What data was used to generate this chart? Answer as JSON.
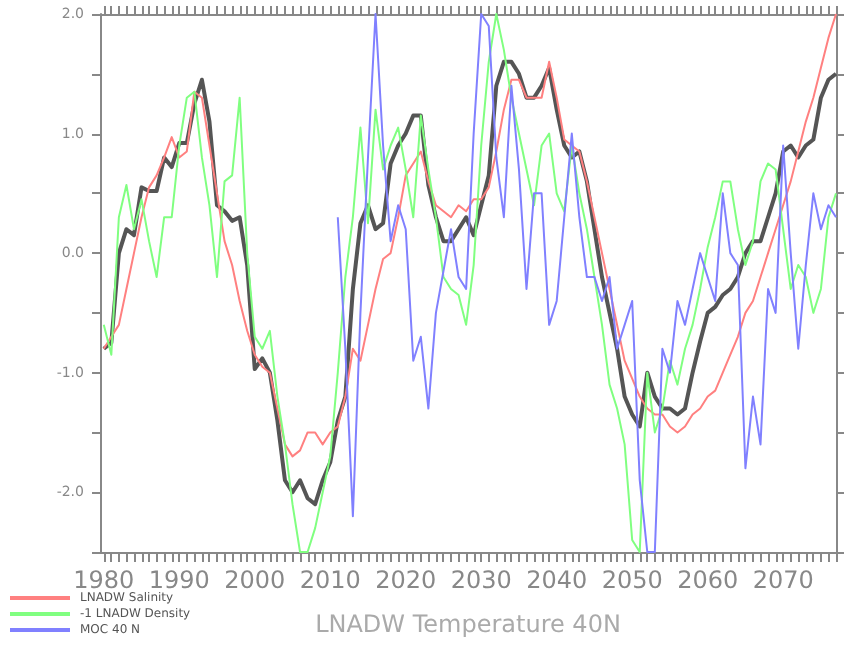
{
  "chart_data": {
    "type": "line",
    "xlabel": "LNADW Temperature 40N",
    "legend": "bottom left",
    "x": [
      1980,
      1981,
      1982,
      1983,
      1984,
      1985,
      1986,
      1987,
      1988,
      1989,
      1990,
      1991,
      1992,
      1993,
      1994,
      1995,
      1996,
      1997,
      1998,
      1999,
      2000,
      2001,
      2002,
      2003,
      2004,
      2005,
      2006,
      2007,
      2008,
      2009,
      2010,
      2011,
      2012,
      2013,
      2014,
      2015,
      2016,
      2017,
      2018,
      2019,
      2020,
      2021,
      2022,
      2023,
      2024,
      2025,
      2026,
      2027,
      2028,
      2029,
      2030,
      2031,
      2032,
      2033,
      2034,
      2035,
      2036,
      2037,
      2038,
      2039,
      2040,
      2041,
      2042,
      2043,
      2044,
      2045,
      2046,
      2047,
      2048,
      2049,
      2050,
      2051,
      2052,
      2053,
      2054,
      2055,
      2056,
      2057,
      2058,
      2059,
      2060,
      2061,
      2062,
      2063,
      2064,
      2065,
      2066,
      2067,
      2068,
      2069,
      2070,
      2071,
      2072,
      2073,
      2074,
      2075,
      2076,
      2077
    ],
    "xlim": [
      1979.5,
      2077
    ],
    "xticks": [
      1980,
      1990,
      2000,
      2010,
      2020,
      2030,
      2040,
      2050,
      2060,
      2070
    ],
    "ylim": [
      -2.5,
      2.0
    ],
    "yticks": [
      {
        "value": -2.5,
        "label": null
      },
      {
        "value": -2,
        "label": "-2.0"
      },
      {
        "value": -1.5,
        "label": null
      },
      {
        "value": -1,
        "label": "-1.0"
      },
      {
        "value": -0.5,
        "label": null
      },
      {
        "value": 0,
        "label": "0.0"
      },
      {
        "value": 0.5,
        "label": null
      },
      {
        "value": 1,
        "label": "1.0"
      },
      {
        "value": 1.5,
        "label": null
      },
      {
        "value": 2,
        "label": "2.0"
      }
    ],
    "series": [
      {
        "color": "#555555",
        "values": [
          -0.8,
          -0.75,
          0.0,
          0.2,
          0.15,
          0.55,
          0.52,
          0.52,
          0.8,
          0.72,
          0.92,
          0.92,
          1.25,
          1.45,
          1.1,
          0.4,
          0.35,
          0.27,
          0.3,
          -0.1,
          -0.97,
          -0.88,
          -1.0,
          -1.4,
          -1.9,
          -2.0,
          -1.9,
          -2.05,
          -2.1,
          -1.9,
          -1.75,
          -1.4,
          -1.2,
          -0.3,
          0.25,
          0.4,
          0.2,
          0.25,
          0.75,
          0.9,
          1.0,
          1.15,
          1.15,
          0.57,
          0.3,
          0.1,
          0.1,
          0.2,
          0.3,
          0.15,
          0.4,
          0.65,
          1.4,
          1.6,
          1.6,
          1.5,
          1.3,
          1.3,
          1.4,
          1.55,
          1.2,
          0.9,
          0.8,
          0.85,
          0.6,
          0.2,
          -0.2,
          -0.5,
          -0.8,
          -1.2,
          -1.35,
          -1.45,
          -1.0,
          -1.2,
          -1.3,
          -1.3,
          -1.35,
          -1.3,
          -1.0,
          -0.74,
          -0.5,
          -0.45,
          -0.35,
          -0.3,
          -0.2,
          0.0,
          0.1,
          0.1,
          0.3,
          0.5,
          0.85,
          0.9,
          0.8,
          0.9,
          0.95,
          1.3,
          1.45,
          1.5
        ]
      },
      {
        "name": "LNADW Salinity",
        "color": "#ff8080",
        "values": [
          -0.8,
          -0.7,
          -0.6,
          -0.3,
          0.0,
          0.3,
          0.55,
          0.65,
          0.8,
          0.97,
          0.8,
          0.85,
          1.35,
          1.3,
          0.9,
          0.5,
          0.1,
          -0.1,
          -0.4,
          -0.65,
          -0.85,
          -0.95,
          -1.0,
          -1.3,
          -1.6,
          -1.7,
          -1.65,
          -1.5,
          -1.5,
          -1.6,
          -1.5,
          -1.45,
          -1.2,
          -0.8,
          -0.9,
          -0.6,
          -0.3,
          -0.05,
          0.0,
          0.3,
          0.65,
          0.75,
          0.85,
          0.6,
          0.4,
          0.35,
          0.3,
          0.4,
          0.35,
          0.45,
          0.45,
          0.55,
          0.85,
          1.2,
          1.45,
          1.45,
          1.3,
          1.3,
          1.3,
          1.6,
          1.3,
          0.95,
          0.9,
          0.85,
          0.6,
          0.3,
          0.0,
          -0.3,
          -0.6,
          -0.9,
          -1.05,
          -1.2,
          -1.3,
          -1.35,
          -1.35,
          -1.45,
          -1.5,
          -1.45,
          -1.35,
          -1.3,
          -1.2,
          -1.15,
          -1.0,
          -0.85,
          -0.7,
          -0.5,
          -0.4,
          -0.2,
          0.0,
          0.2,
          0.4,
          0.6,
          0.85,
          1.1,
          1.3,
          1.55,
          1.8,
          2.0
        ]
      },
      {
        "name": "-1 LNADW Density",
        "color": "#80ff80",
        "values": [
          -0.6,
          -0.85,
          0.3,
          0.57,
          0.2,
          0.45,
          0.1,
          -0.2,
          0.3,
          0.3,
          0.9,
          1.3,
          1.35,
          0.8,
          0.4,
          -0.2,
          0.6,
          0.65,
          1.3,
          0.0,
          -0.7,
          -0.8,
          -0.65,
          -1.2,
          -1.6,
          -2.1,
          -2.5,
          -2.5,
          -2.3,
          -2.0,
          -1.7,
          -1.0,
          -0.2,
          0.3,
          1.05,
          0.25,
          1.2,
          0.7,
          0.9,
          1.05,
          0.7,
          0.3,
          1.15,
          0.7,
          0.3,
          -0.2,
          -0.3,
          -0.35,
          -0.6,
          -0.1,
          0.9,
          1.6,
          2.0,
          1.7,
          1.3,
          1.0,
          0.7,
          0.4,
          0.9,
          1.0,
          0.5,
          0.35,
          0.9,
          0.5,
          0.2,
          -0.2,
          -0.6,
          -1.1,
          -1.3,
          -1.6,
          -2.4,
          -2.5,
          -1.0,
          -1.5,
          -1.3,
          -0.9,
          -1.1,
          -0.8,
          -0.6,
          -0.3,
          0.05,
          0.3,
          0.6,
          0.6,
          0.2,
          -0.1,
          0.1,
          0.6,
          0.75,
          0.7,
          0.2,
          -0.3,
          -0.1,
          -0.2,
          -0.5,
          -0.3,
          0.3,
          0.5
        ]
      },
      {
        "name": "MOC 40 N",
        "color": "#8080ff",
        "values": [
          null,
          null,
          null,
          null,
          null,
          null,
          null,
          null,
          null,
          null,
          null,
          null,
          null,
          null,
          null,
          null,
          null,
          null,
          null,
          null,
          null,
          null,
          null,
          null,
          null,
          null,
          null,
          null,
          null,
          null,
          null,
          0.3,
          -0.8,
          -2.2,
          -0.5,
          0.8,
          2.0,
          0.9,
          0.1,
          0.4,
          0.2,
          -0.9,
          -0.7,
          -1.3,
          -0.5,
          -0.15,
          0.2,
          -0.2,
          -0.3,
          1.0,
          2.0,
          1.9,
          0.8,
          0.3,
          1.4,
          0.7,
          -0.3,
          0.5,
          0.5,
          -0.6,
          -0.4,
          0.3,
          1.0,
          0.3,
          -0.2,
          -0.2,
          -0.4,
          -0.2,
          -0.8,
          -0.6,
          -0.4,
          -1.9,
          -2.5,
          -2.5,
          -0.8,
          -1.0,
          -0.4,
          -0.6,
          -0.3,
          0.0,
          -0.2,
          -0.4,
          0.5,
          0.0,
          -0.1,
          -1.8,
          -1.2,
          -1.6,
          -0.3,
          -0.5,
          0.9,
          0.0,
          -0.8,
          -0.1,
          0.5,
          0.2,
          0.4,
          0.3
        ]
      }
    ]
  }
}
